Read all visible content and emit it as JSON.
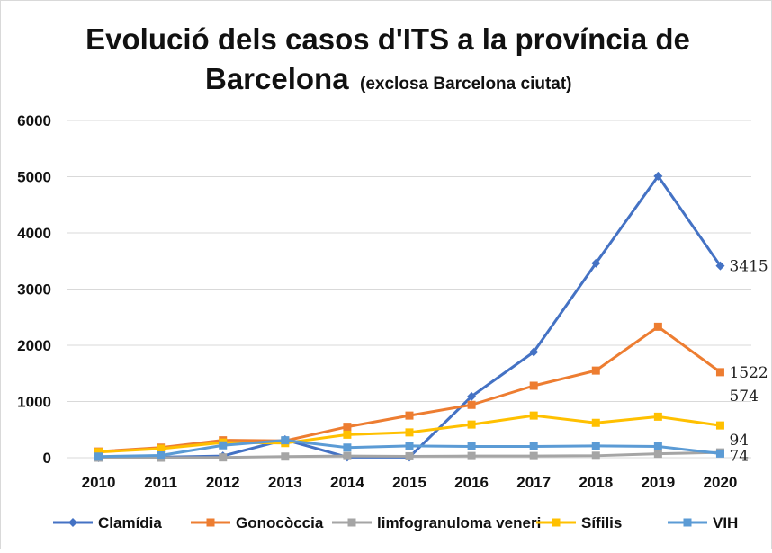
{
  "chart_data": {
    "type": "line",
    "title": "Evolució dels casos d'ITS a la província de",
    "title_line2": "Barcelona",
    "subtitle": "(exclosa Barcelona ciutat)",
    "xlabel": "",
    "ylabel": "",
    "categories": [
      "2010",
      "2011",
      "2012",
      "2013",
      "2014",
      "2015",
      "2016",
      "2017",
      "2018",
      "2019",
      "2020"
    ],
    "y_ticks": [
      "0",
      "1000",
      "2000",
      "3000",
      "4000",
      "5000",
      "6000"
    ],
    "ylim": [
      0,
      6000
    ],
    "grid": true,
    "legend_position": "bottom",
    "series": [
      {
        "name": "Clamídia",
        "color": "#4472c4",
        "marker": "diamond",
        "values": [
          0,
          10,
          30,
          320,
          10,
          10,
          1090,
          1880,
          3460,
          5010,
          3415
        ],
        "end_label": "3415"
      },
      {
        "name": "Gonocòccia",
        "color": "#ed7d31",
        "marker": "square",
        "values": [
          110,
          180,
          310,
          300,
          550,
          750,
          940,
          1280,
          1550,
          2330,
          1522
        ],
        "end_label": "1522"
      },
      {
        "name": "limfogranuloma veneri",
        "color": "#a5a5a5",
        "marker": "square",
        "values": [
          0,
          0,
          5,
          20,
          30,
          25,
          30,
          30,
          35,
          70,
          94
        ],
        "end_label": "94"
      },
      {
        "name": "Sífilis",
        "color": "#ffc000",
        "marker": "square",
        "values": [
          100,
          160,
          270,
          260,
          410,
          450,
          590,
          750,
          620,
          730,
          574
        ],
        "end_label": "574"
      },
      {
        "name": "VIH",
        "color": "#5b9bd5",
        "marker": "square",
        "values": [
          20,
          40,
          220,
          310,
          180,
          210,
          200,
          200,
          210,
          200,
          74
        ],
        "end_label": "74"
      }
    ]
  }
}
